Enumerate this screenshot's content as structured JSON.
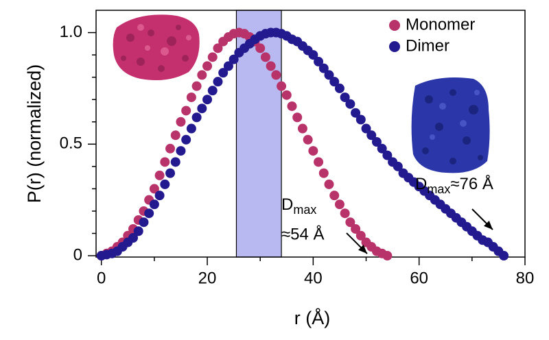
{
  "chart_data": {
    "type": "scatter",
    "xlabel": "r (Å)",
    "ylabel": "P(r) (normalized)",
    "xlim": [
      -1,
      80
    ],
    "ylim": [
      -0.006,
      1.1
    ],
    "xticks": [
      0,
      20,
      40,
      60,
      80
    ],
    "xminorticks": [
      10,
      30,
      50,
      70
    ],
    "yticks": [
      0,
      0.5,
      {
        "value": 1,
        "label": "1.0"
      }
    ],
    "yminorticks": [
      0.1,
      0.2,
      0.3,
      0.4,
      0.6,
      0.7,
      0.8,
      0.9
    ],
    "legend": "upper right",
    "shaded_region": {
      "xrange": [
        25.5,
        34
      ],
      "color": "#b9b9f2"
    },
    "series": [
      {
        "name": "Monomer",
        "color": "#b8336a",
        "x": [
          0,
          1,
          2,
          3,
          4,
          5,
          6,
          7,
          8,
          9,
          10,
          11,
          12,
          13,
          14,
          15,
          16,
          17,
          18,
          19,
          20,
          21,
          22,
          23,
          24,
          25,
          26,
          27,
          28,
          29,
          30,
          31,
          32,
          33,
          34,
          35,
          36,
          37,
          38,
          39,
          40,
          41,
          42,
          43,
          44,
          45,
          46,
          47,
          48,
          49,
          50,
          51,
          52,
          53,
          54
        ],
        "values": [
          0,
          0.01,
          0.02,
          0.04,
          0.06,
          0.09,
          0.12,
          0.16,
          0.2,
          0.25,
          0.3,
          0.36,
          0.42,
          0.48,
          0.54,
          0.6,
          0.65,
          0.71,
          0.76,
          0.81,
          0.85,
          0.89,
          0.93,
          0.96,
          0.98,
          0.995,
          1,
          0.995,
          0.98,
          0.96,
          0.93,
          0.89,
          0.85,
          0.81,
          0.76,
          0.72,
          0.67,
          0.62,
          0.57,
          0.52,
          0.47,
          0.42,
          0.37,
          0.32,
          0.27,
          0.23,
          0.19,
          0.15,
          0.12,
          0.09,
          0.06,
          0.04,
          0.02,
          0.01,
          0
        ]
      },
      {
        "name": "Dimer",
        "color": "#221a8e",
        "x": [
          0,
          1,
          2,
          3,
          4,
          5,
          6,
          7,
          8,
          9,
          10,
          11,
          12,
          13,
          14,
          15,
          16,
          17,
          18,
          19,
          20,
          21,
          22,
          23,
          24,
          25,
          26,
          27,
          28,
          29,
          30,
          31,
          32,
          33,
          34,
          35,
          36,
          37,
          38,
          39,
          40,
          41,
          42,
          43,
          44,
          45,
          46,
          47,
          48,
          49,
          50,
          51,
          52,
          53,
          54,
          55,
          56,
          57,
          58,
          59,
          60,
          61,
          62,
          63,
          64,
          65,
          66,
          67,
          68,
          69,
          70,
          71,
          72,
          73,
          74,
          75,
          76
        ],
        "values": [
          0,
          0.005,
          0.01,
          0.02,
          0.04,
          0.06,
          0.08,
          0.11,
          0.15,
          0.19,
          0.23,
          0.27,
          0.32,
          0.37,
          0.42,
          0.47,
          0.52,
          0.57,
          0.62,
          0.66,
          0.7,
          0.74,
          0.78,
          0.82,
          0.85,
          0.88,
          0.91,
          0.93,
          0.95,
          0.97,
          0.985,
          0.995,
          1,
          1,
          0.995,
          0.985,
          0.97,
          0.96,
          0.94,
          0.92,
          0.9,
          0.87,
          0.84,
          0.81,
          0.78,
          0.75,
          0.71,
          0.68,
          0.64,
          0.61,
          0.57,
          0.54,
          0.51,
          0.48,
          0.45,
          0.42,
          0.4,
          0.37,
          0.35,
          0.33,
          0.31,
          0.29,
          0.27,
          0.25,
          0.23,
          0.21,
          0.19,
          0.17,
          0.15,
          0.13,
          0.11,
          0.09,
          0.07,
          0.06,
          0.04,
          0.02,
          0
        ]
      }
    ],
    "annotations": [
      {
        "text": "D",
        "sub": "max",
        "text2": "≈54 Å"
      },
      {
        "text": "D",
        "sub": "max",
        "text2": "≈76 Å"
      }
    ]
  }
}
